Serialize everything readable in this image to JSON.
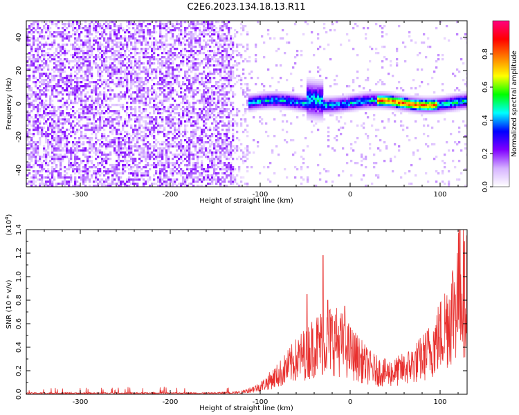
{
  "title": "C2E6.2023.134.18.13.R11",
  "chart_data": [
    {
      "type": "heatmap",
      "xlabel": "Height of straight line (km)",
      "ylabel": "Frequency (Hz)",
      "xlim": [
        -360,
        130
      ],
      "ylim": [
        -50,
        50
      ],
      "xticks": [
        -300,
        -200,
        -100,
        0,
        100
      ],
      "yticks": [
        -40,
        -20,
        0,
        20,
        40
      ],
      "colorbar": {
        "label": "Normalized spectral amplitude",
        "range": [
          0.0,
          1.0
        ],
        "ticks": [
          "0.0",
          "0.2",
          "0.4",
          "0.6",
          "0.8"
        ],
        "colormap": [
          "#ffffff",
          "#d6b3ff",
          "#8000ff",
          "#0000ff",
          "#00ffff",
          "#00ff00",
          "#ffff00",
          "#ff8000",
          "#ff0000",
          "#ff0080"
        ]
      },
      "regions": [
        {
          "x_range": [
            -360,
            -130
          ],
          "description": "broadband noise, amplitude ~0.1-0.2 across all frequencies"
        },
        {
          "x_range": [
            -130,
            130
          ],
          "description": "narrow band signal near 0 Hz, amplitude rising to ~0.9 between 30 and 90 km"
        }
      ]
    },
    {
      "type": "line",
      "xlabel": "Height of straight line (km)",
      "ylabel": "SNR (10 * v/v)",
      "yscale_label": "(x10",
      "yscale_exponent": "4",
      "yscale_suffix": ")",
      "xlim": [
        -360,
        130
      ],
      "ylim": [
        0.0,
        1.4
      ],
      "xticks": [
        -300,
        -200,
        -100,
        0,
        100
      ],
      "yticks": [
        "0.0",
        "0.2",
        "0.4",
        "0.6",
        "0.8",
        "1.0",
        "1.2",
        "1.4"
      ],
      "color": "#e8302e",
      "envelope": {
        "x": [
          -360,
          -150,
          -120,
          -100,
          -80,
          -60,
          -40,
          -30,
          -20,
          -10,
          0,
          10,
          20,
          30,
          40,
          50,
          60,
          70,
          80,
          90,
          100,
          110,
          120,
          130
        ],
        "y": [
          0.01,
          0.01,
          0.02,
          0.07,
          0.18,
          0.32,
          0.45,
          0.5,
          0.52,
          0.48,
          0.4,
          0.33,
          0.26,
          0.22,
          0.2,
          0.21,
          0.24,
          0.28,
          0.34,
          0.42,
          0.55,
          0.72,
          0.95,
          1.05
        ]
      },
      "peaks": [
        {
          "x": -48,
          "y": 0.85
        },
        {
          "x": -30,
          "y": 1.18
        },
        {
          "x": -25,
          "y": 0.8
        },
        {
          "x": -6,
          "y": 0.75
        },
        {
          "x": 122,
          "y": 1.4
        },
        {
          "x": 127,
          "y": 1.3
        }
      ]
    }
  ]
}
